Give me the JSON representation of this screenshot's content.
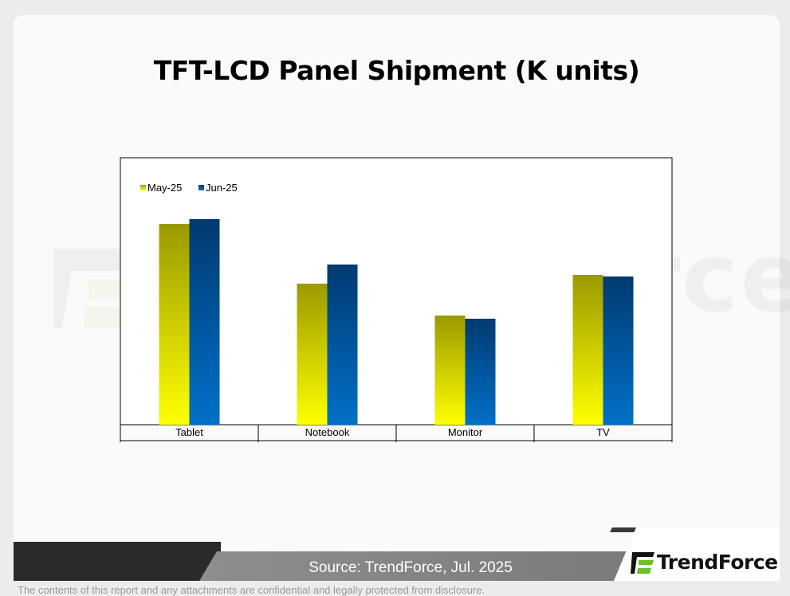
{
  "title": "TFT-LCD Panel Shipment (K units)",
  "watermark_text": "TrendForce",
  "source": "Source: TrendForce, Jul. 2025",
  "logo_text": "TrendForce",
  "disclaimer": "The contents of this report and any attachments are confidential and legally protected from disclosure.",
  "colors": {
    "may_top": "#9a9a00",
    "may_bottom": "#ffff00",
    "jun_top": "#003a70",
    "jun_bottom": "#0070c8",
    "logo_accent": "#6abf2a"
  },
  "chart_data": {
    "type": "bar",
    "title": "TFT-LCD Panel Shipment (K units)",
    "categories": [
      "Tablet",
      "Notebook",
      "Monitor",
      "TV"
    ],
    "series": [
      {
        "name": "May-25",
        "values": [
          252,
          177,
          137,
          188
        ]
      },
      {
        "name": "Jun-25",
        "values": [
          258,
          201,
          133,
          186
        ]
      }
    ],
    "ylim": [
      0,
      335
    ],
    "xlabel": "",
    "ylabel": "",
    "grid": false,
    "legend": "top-left",
    "y_axis_labels": false
  }
}
